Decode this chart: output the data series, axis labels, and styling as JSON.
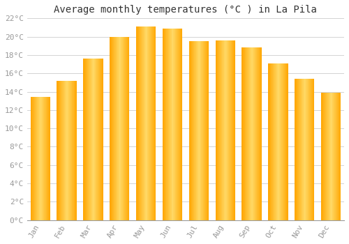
{
  "title": "Average monthly temperatures (°C ) in La Pila",
  "months": [
    "Jan",
    "Feb",
    "Mar",
    "Apr",
    "May",
    "Jun",
    "Jul",
    "Aug",
    "Sep",
    "Oct",
    "Nov",
    "Dec"
  ],
  "values": [
    13.4,
    15.2,
    17.6,
    20.0,
    21.1,
    20.9,
    19.5,
    19.6,
    18.8,
    17.1,
    15.4,
    13.9
  ],
  "bar_color_light": "#FFD966",
  "bar_color_dark": "#FFA500",
  "background_color": "#FFFFFF",
  "grid_color": "#CCCCCC",
  "ylim": [
    0,
    22
  ],
  "ytick_step": 2,
  "title_fontsize": 10,
  "tick_fontsize": 8,
  "tick_color": "#999999",
  "font_family": "monospace"
}
